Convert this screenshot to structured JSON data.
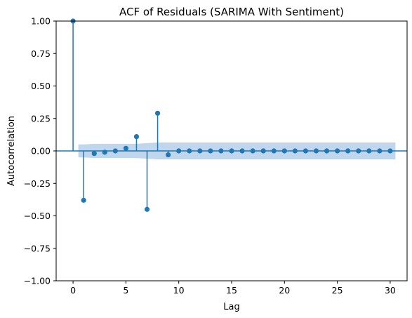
{
  "chart_data": {
    "type": "stem",
    "title": "ACF of Residuals (SARIMA With Sentiment)",
    "xlabel": "Lag",
    "ylabel": "Autocorrelation",
    "xlim": [
      -1.6,
      31.6
    ],
    "ylim": [
      -1.0,
      1.0
    ],
    "xticks": [
      0,
      5,
      10,
      15,
      20,
      25,
      30
    ],
    "xtick_labels": [
      "0",
      "5",
      "10",
      "15",
      "20",
      "25",
      "30"
    ],
    "yticks": [
      1.0,
      0.75,
      0.5,
      0.25,
      0.0,
      -0.25,
      -0.5,
      -0.75,
      -1.0
    ],
    "ytick_labels": [
      "1.00",
      "0.75",
      "0.50",
      "0.25",
      "0.00",
      "−0.25",
      "−0.50",
      "−0.75",
      "−1.00"
    ],
    "lags": [
      0,
      1,
      2,
      3,
      4,
      5,
      6,
      7,
      8,
      9,
      10,
      11,
      12,
      13,
      14,
      15,
      16,
      17,
      18,
      19,
      20,
      21,
      22,
      23,
      24,
      25,
      26,
      27,
      28,
      29,
      30
    ],
    "values": [
      1.0,
      -0.38,
      -0.02,
      -0.01,
      0.0,
      0.02,
      0.11,
      -0.45,
      0.29,
      -0.03,
      0.0,
      0.0,
      0.0,
      0.0,
      0.0,
      0.0,
      0.0,
      0.0,
      0.0,
      0.0,
      0.0,
      0.0,
      0.0,
      0.0,
      0.0,
      0.0,
      0.0,
      0.0,
      0.0,
      0.0,
      0.0
    ],
    "confidence_band": {
      "lags": [
        0.5,
        1,
        2,
        3,
        4,
        5,
        6,
        7,
        8,
        9,
        10,
        15,
        20,
        25,
        30,
        30.5
      ],
      "upper": [
        0.05,
        0.05,
        0.055,
        0.055,
        0.055,
        0.055,
        0.055,
        0.06,
        0.065,
        0.065,
        0.065,
        0.065,
        0.065,
        0.065,
        0.065,
        0.065
      ]
    },
    "colors": {
      "stem": "#1f77b4",
      "band": "#a9c8e6",
      "axes": "#000000"
    }
  }
}
